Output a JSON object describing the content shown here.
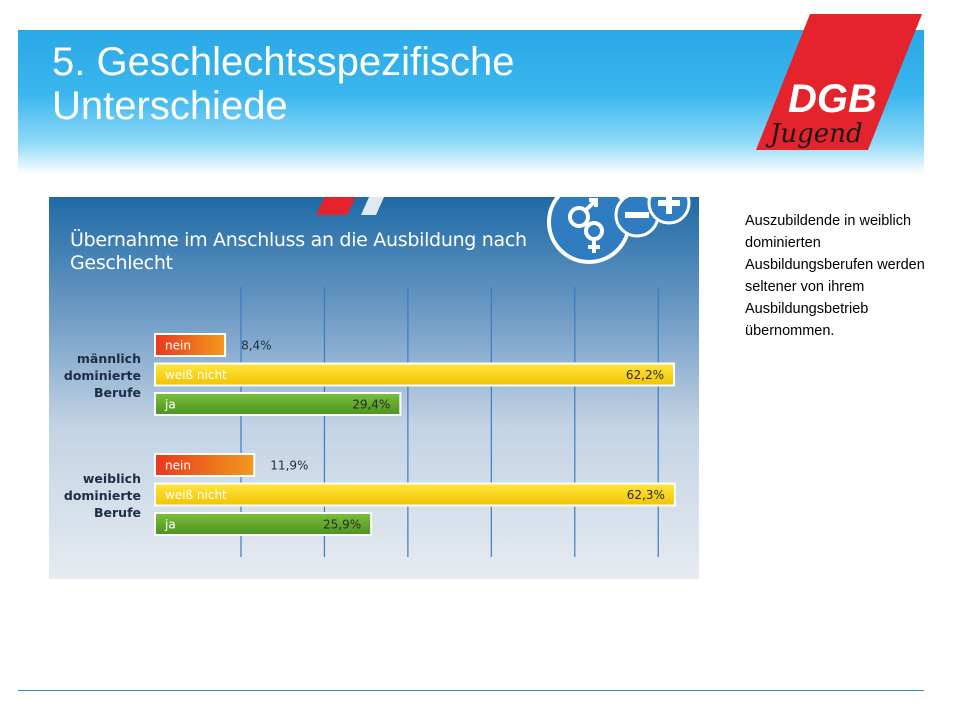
{
  "slide": {
    "title": "5. Geschlechtsspezifische Unterschiede",
    "side_text": "Auszubildende in weiblich dominierten Ausbildungsberufen werden seltener von ihrem Ausbildungsbetrieb übernommen."
  },
  "logo": {
    "name": "DGB",
    "sub": "Jugend"
  },
  "colors": {
    "header": "#2aa8e6",
    "nein": "#e8381e",
    "weiss_nicht": "#f7d000",
    "ja": "#5aa32a",
    "panel": "#1e6aa6"
  },
  "chart_data": {
    "type": "bar",
    "orientation": "horizontal",
    "title": "Übernahme im Anschluss an die Ausbildung nach Geschlecht",
    "xlim": [
      0,
      65
    ],
    "grid": true,
    "groups": [
      {
        "name": "männlich dominierte Berufe",
        "bars": [
          {
            "label": "nein",
            "value": 8.4,
            "value_label": "8,4%"
          },
          {
            "label": "weiß nicht",
            "value": 62.2,
            "value_label": "62,2%"
          },
          {
            "label": "ja",
            "value": 29.4,
            "value_label": "29,4%"
          }
        ]
      },
      {
        "name": "weiblich dominierte Berufe",
        "bars": [
          {
            "label": "nein",
            "value": 11.9,
            "value_label": "11,9%"
          },
          {
            "label": "weiß nicht",
            "value": 62.3,
            "value_label": "62,3%"
          },
          {
            "label": "ja",
            "value": 25.9,
            "value_label": "25,9%"
          }
        ]
      }
    ]
  }
}
